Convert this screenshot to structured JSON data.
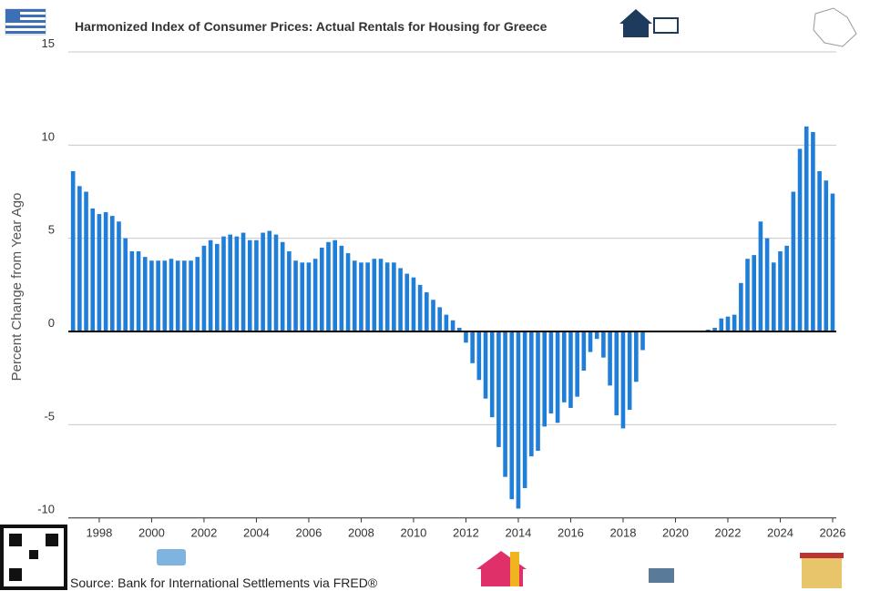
{
  "chart_data": {
    "type": "bar",
    "title": "Harmonized Index of Consumer Prices: Actual Rentals for Housing for Greece",
    "y_label": "Percent Change from Year Ago",
    "source": "Source: Bank for International Settlements via FRED®",
    "color": "#1f7ed8",
    "x": [
      1997,
      1997.25,
      1997.5,
      1997.75,
      1998,
      1998.25,
      1998.5,
      1998.75,
      1999,
      1999.25,
      1999.5,
      1999.75,
      2000,
      2000.25,
      2000.5,
      2000.75,
      2001,
      2001.25,
      2001.5,
      2001.75,
      2002,
      2002.25,
      2002.5,
      2002.75,
      2003,
      2003.25,
      2003.5,
      2003.75,
      2004,
      2004.25,
      2004.5,
      2004.75,
      2005,
      2005.25,
      2005.5,
      2005.75,
      2006,
      2006.25,
      2006.5,
      2006.75,
      2007,
      2007.25,
      2007.5,
      2007.75,
      2008,
      2008.25,
      2008.5,
      2008.75,
      2009,
      2009.25,
      2009.5,
      2009.75,
      2010,
      2010.25,
      2010.5,
      2010.75,
      2011,
      2011.25,
      2011.5,
      2011.75,
      2012,
      2012.25,
      2012.5,
      2012.75,
      2013,
      2013.25,
      2013.5,
      2013.75,
      2014,
      2014.25,
      2014.5,
      2014.75,
      2015,
      2015.25,
      2015.5,
      2015.75,
      2016,
      2016.25,
      2016.5,
      2016.75,
      2017,
      2017.25,
      2017.5,
      2017.75,
      2018,
      2018.25,
      2018.5,
      2018.75,
      2019,
      2019.25,
      2019.5,
      2019.75,
      2020,
      2020.25,
      2020.5,
      2020.75,
      2021,
      2021.25,
      2021.5,
      2021.75,
      2022,
      2022.25,
      2022.5,
      2022.75,
      2023,
      2023.25,
      2023.5,
      2023.75,
      2024,
      2024.25,
      2024.5,
      2024.75,
      2025,
      2025.25,
      2025.5,
      2025.75,
      2026
    ],
    "values": [
      8.6,
      7.8,
      7.5,
      6.6,
      6.3,
      6.4,
      6.2,
      5.9,
      5.0,
      4.3,
      4.3,
      4.0,
      3.8,
      3.8,
      3.8,
      3.9,
      3.8,
      3.8,
      3.8,
      4.0,
      4.6,
      4.9,
      4.7,
      5.1,
      5.2,
      5.1,
      5.3,
      4.9,
      4.9,
      5.3,
      5.4,
      5.2,
      4.8,
      4.3,
      3.8,
      3.7,
      3.7,
      3.9,
      4.5,
      4.8,
      4.9,
      4.6,
      4.2,
      3.8,
      3.7,
      3.7,
      3.9,
      3.9,
      3.7,
      3.7,
      3.4,
      3.1,
      2.9,
      2.5,
      2.1,
      1.7,
      1.3,
      0.9,
      0.6,
      0.2,
      -0.6,
      -1.7,
      -2.6,
      -3.6,
      -4.6,
      -6.2,
      -7.8,
      -9.0,
      -9.5,
      -8.4,
      -6.7,
      -6.4,
      -5.1,
      -4.4,
      -4.9,
      -3.8,
      -4.1,
      -3.5,
      -2.1,
      -1.1,
      -0.4,
      -1.4,
      -2.9,
      -4.5,
      -5.2,
      -4.2,
      -2.7,
      -1.0,
      0,
      0,
      0,
      0,
      0,
      0,
      0,
      0,
      0,
      0.1,
      0.2,
      0.7,
      0.8,
      0.9,
      2.6,
      3.9,
      4.1,
      5.9,
      5.0,
      3.7,
      4.3,
      4.6,
      7.5,
      9.8,
      11.0,
      10.7,
      8.6,
      8.1,
      7.4
    ],
    "xlim": [
      1996.82,
      2026.14
    ],
    "xticks": [
      1998,
      2000,
      2002,
      2004,
      2006,
      2008,
      2010,
      2012,
      2014,
      2016,
      2018,
      2020,
      2022,
      2024,
      2026
    ],
    "ylim": [
      -10,
      15
    ],
    "yticks": [
      -10,
      -5,
      0,
      5,
      10,
      15
    ],
    "grid": true
  }
}
